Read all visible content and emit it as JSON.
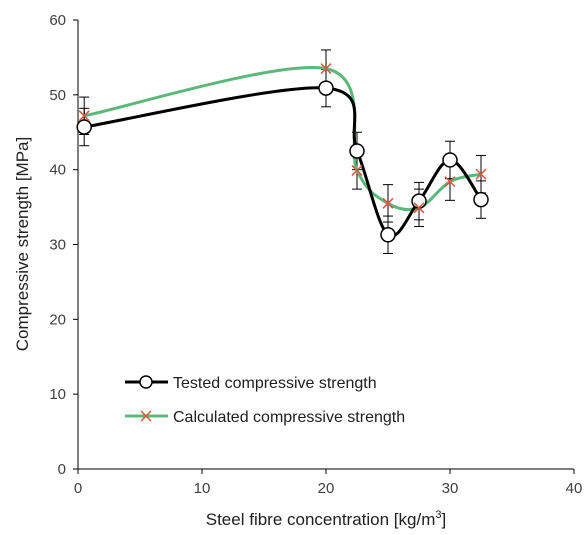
{
  "chart_data": {
    "type": "line",
    "title": "",
    "xlabel_main": "Steel fibre concentration [kg/m",
    "xlabel_sup": "3",
    "xlabel_end": "]",
    "ylabel": "Compressive strength [MPa]",
    "xlim": [
      0,
      40
    ],
    "ylim": [
      0,
      60
    ],
    "xticks": [
      "0",
      "10",
      "20",
      "30",
      "40"
    ],
    "yticks": [
      "0",
      "10",
      "20",
      "30",
      "40",
      "50",
      "60"
    ],
    "grid": false,
    "legend_position": "bottom-left",
    "series": [
      {
        "name": "Tested compressive strength",
        "color": "#000000",
        "marker": "open-circle",
        "x": [
          0.5,
          20,
          22.5,
          25,
          27.5,
          30,
          32.5
        ],
        "y": [
          45.7,
          50.9,
          42.5,
          31.3,
          35.8,
          41.3,
          36.0
        ],
        "err": [
          2.5,
          2.5,
          2.5,
          2.5,
          2.5,
          2.5,
          2.5
        ]
      },
      {
        "name": "Calculated compressive strength",
        "color": "#5cb87a",
        "marker": "x",
        "marker_color": "#d9583b",
        "x": [
          0.5,
          20,
          22.5,
          25,
          27.5,
          30,
          32.5
        ],
        "y": [
          47.2,
          53.5,
          39.9,
          35.5,
          34.9,
          38.4,
          39.4
        ],
        "err": [
          2.5,
          2.5,
          2.5,
          2.5,
          2.5,
          2.5,
          2.5
        ]
      }
    ]
  }
}
